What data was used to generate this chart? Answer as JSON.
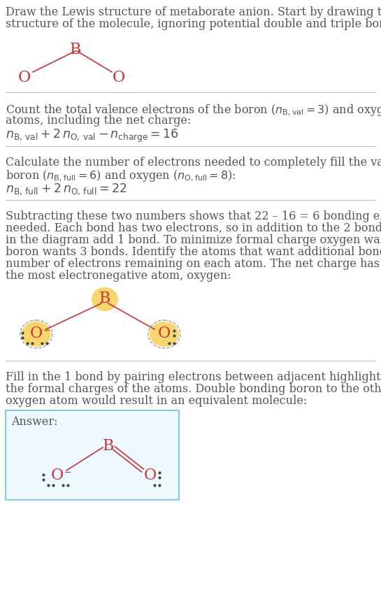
{
  "bg_color": "#ffffff",
  "text_color": "#555555",
  "atom_color": "#cc3333",
  "bond_color": "#cc3333",
  "highlight_color": "#f5d76e",
  "divider_color": "#bbbbbb",
  "answer_box_border": "#88ccee",
  "answer_box_bg": "#eef8ff",
  "answer_label": "Answer:",
  "font_size": 11.5,
  "math_size": 12.5
}
